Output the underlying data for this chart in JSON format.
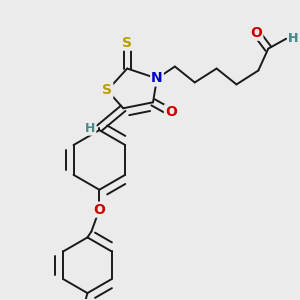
{
  "bg_color": "#ebebeb",
  "bond_color": "#1a1a1a",
  "atom_colors": {
    "S": "#b8a000",
    "N": "#0000cc",
    "O": "#cc0000",
    "H": "#4a8a8a",
    "C": "#1a1a1a"
  },
  "line_width": 1.4,
  "font_size": 9,
  "fig_size": [
    3.0,
    3.0
  ],
  "dpi": 100
}
